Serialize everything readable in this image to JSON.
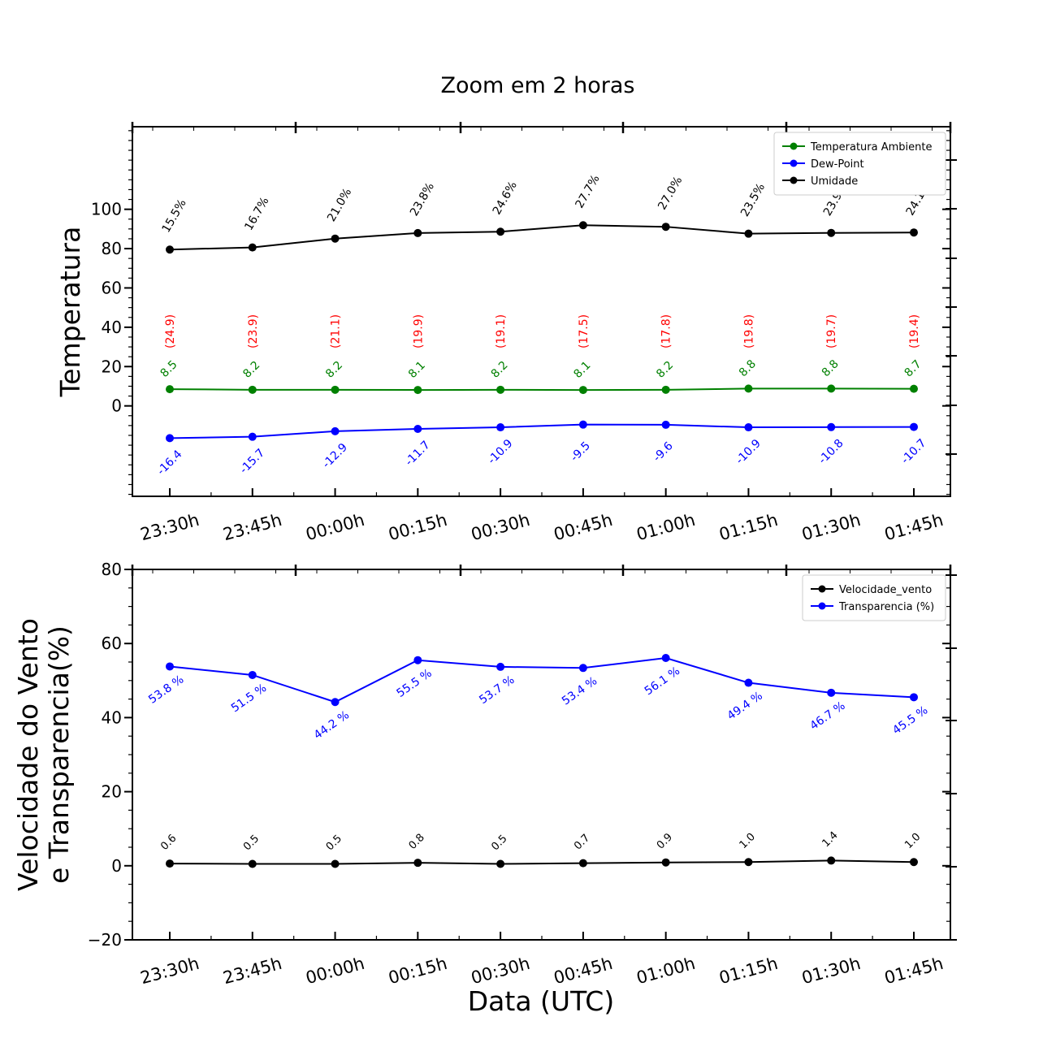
{
  "figure": {
    "title": "Zoom em 2 horas",
    "xlabel": "Data (UTC)"
  },
  "colors": {
    "temperatura": "#008000",
    "dew_point": "#0000ff",
    "umidade": "#000000",
    "heat_index": "#ff0000",
    "vento": "#000000",
    "transparencia": "#0000ff"
  },
  "chart_data": [
    {
      "type": "line",
      "ylabel": "Temperatura",
      "ylim": [
        -46,
        142
      ],
      "yticks": [
        0,
        20,
        40,
        60,
        80,
        100
      ],
      "categories": [
        "23:30h",
        "23:45h",
        "00:00h",
        "00:15h",
        "00:30h",
        "00:45h",
        "01:00h",
        "01:15h",
        "01:30h",
        "01:45h"
      ],
      "legend_position": "top-right",
      "series": [
        {
          "name": "Temperatura Ambiente",
          "color": "#008000",
          "values": [
            8.5,
            8.2,
            8.2,
            8.1,
            8.2,
            8.1,
            8.2,
            8.8,
            8.8,
            8.7
          ],
          "labels": [
            "8.5",
            "8.2",
            "8.2",
            "8.1",
            "8.2",
            "8.1",
            "8.2",
            "8.8",
            "8.8",
            "8.7"
          ]
        },
        {
          "name": "Dew-Point",
          "color": "#0000ff",
          "values": [
            -16.4,
            -15.7,
            -12.9,
            -11.7,
            -10.9,
            -9.5,
            -9.6,
            -10.9,
            -10.8,
            -10.7
          ],
          "labels": [
            "-16.4",
            "-15.7",
            "-12.9",
            "-11.7",
            "-10.9",
            "-9.5",
            "-9.6",
            "-10.9",
            "-10.8",
            "-10.7"
          ]
        },
        {
          "name": "Umidade",
          "color": "#000000",
          "values": [
            79.5,
            80.6,
            85.1,
            87.9,
            88.6,
            91.9,
            91.1,
            87.6,
            88.0,
            88.2
          ],
          "labels": [
            "15.5%",
            "16.7%",
            "21.0%",
            "23.8%",
            "24.6%",
            "27.7%",
            "27.0%",
            "23.5%",
            "23.9%",
            "24.1%"
          ]
        }
      ],
      "annotations": [
        {
          "color": "#ff0000",
          "labels": [
            "(24.9)",
            "(23.9)",
            "(21.1)",
            "(19.9)",
            "(19.1)",
            "(17.5)",
            "(17.8)",
            "(19.8)",
            "(19.7)",
            "(19.4)"
          ]
        }
      ]
    },
    {
      "type": "line",
      "ylabel": "Velocidade do Vento\ne Transparencia(%)",
      "ylim": [
        -20,
        80
      ],
      "yticks": [
        -20,
        0,
        20,
        40,
        60,
        80
      ],
      "categories": [
        "23:30h",
        "23:45h",
        "00:00h",
        "00:15h",
        "00:30h",
        "00:45h",
        "01:00h",
        "01:15h",
        "01:30h",
        "01:45h"
      ],
      "legend_position": "top-right",
      "series": [
        {
          "name": "Velocidade_vento",
          "color": "#000000",
          "values": [
            0.6,
            0.5,
            0.5,
            0.8,
            0.5,
            0.7,
            0.9,
            1.0,
            1.4,
            1.0
          ],
          "labels": [
            "0.6",
            "0.5",
            "0.5",
            "0.8",
            "0.5",
            "0.7",
            "0.9",
            "1.0",
            "1.4",
            "1.0"
          ]
        },
        {
          "name": "Transparencia (%)",
          "color": "#0000ff",
          "values": [
            53.8,
            51.5,
            44.2,
            55.5,
            53.7,
            53.4,
            56.1,
            49.4,
            46.7,
            45.5
          ],
          "labels": [
            "53.8 %",
            "51.5 %",
            "44.2 %",
            "55.5 %",
            "53.7 %",
            "53.4 %",
            "56.1 %",
            "49.4 %",
            "46.7 %",
            "45.5 %"
          ]
        }
      ]
    }
  ]
}
